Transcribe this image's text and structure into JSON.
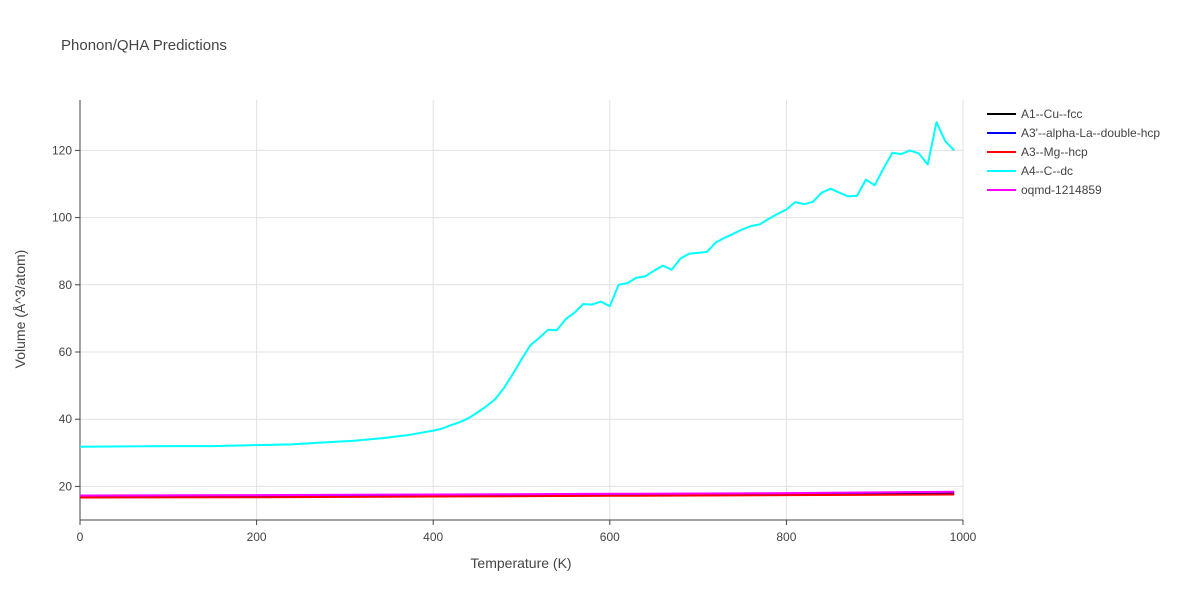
{
  "chart_data": {
    "type": "line",
    "title": "Phonon/QHA Predictions",
    "xlabel": "Temperature (K)",
    "ylabel": "Volume (Å^3/atom)",
    "xlim": [
      0,
      1000
    ],
    "ylim": [
      10,
      135
    ],
    "xticks": [
      0,
      200,
      400,
      600,
      800,
      1000
    ],
    "yticks": [
      20,
      40,
      60,
      80,
      100,
      120
    ],
    "grid": true,
    "legend_position": "top-right",
    "series": [
      {
        "name": "A1--Cu--fcc",
        "color": "#000000",
        "x": [
          0,
          200,
          400,
          600,
          800,
          990
        ],
        "y": [
          16.9,
          17.0,
          17.2,
          17.4,
          17.6,
          17.9
        ]
      },
      {
        "name": "A3'--alpha-La--double-hcp",
        "color": "#0000ff",
        "x": [
          0,
          200,
          400,
          600,
          800,
          990
        ],
        "y": [
          16.8,
          16.9,
          17.1,
          17.3,
          17.5,
          17.7
        ]
      },
      {
        "name": "A3--Mg--hcp",
        "color": "#ff0000",
        "x": [
          0,
          200,
          400,
          600,
          800,
          990
        ],
        "y": [
          16.7,
          16.8,
          17.0,
          17.2,
          17.4,
          17.6
        ]
      },
      {
        "name": "A4--C--dc",
        "color": "#00ffff",
        "x": [
          0,
          50,
          100,
          150,
          200,
          240,
          270,
          310,
          340,
          370,
          400,
          410,
          420,
          430,
          440,
          450,
          460,
          470,
          480,
          490,
          500,
          510,
          520,
          530,
          540,
          550,
          560,
          570,
          580,
          590,
          600,
          610,
          620,
          630,
          640,
          650,
          660,
          670,
          680,
          690,
          700,
          710,
          720,
          730,
          740,
          750,
          760,
          770,
          780,
          790,
          800,
          810,
          820,
          830,
          840,
          850,
          860,
          870,
          880,
          890,
          900,
          910,
          920,
          930,
          940,
          950,
          960,
          970,
          980,
          990
        ],
        "y": [
          31.8,
          31.9,
          32.0,
          32.0,
          32.3,
          32.5,
          33.0,
          33.6,
          34.3,
          35.2,
          36.6,
          37.2,
          38.2,
          39.1,
          40.3,
          42.0,
          43.8,
          45.9,
          49.2,
          53.4,
          57.8,
          62.0,
          64.2,
          66.6,
          66.5,
          69.8,
          71.7,
          74.3,
          74.1,
          75.0,
          73.6,
          80.0,
          80.5,
          82.1,
          82.5,
          84.2,
          85.7,
          84.5,
          87.8,
          89.3,
          89.5,
          89.8,
          92.6,
          94.0,
          95.2,
          96.5,
          97.5,
          98.0,
          99.6,
          101.1,
          102.4,
          104.6,
          104.0,
          104.7,
          107.4,
          108.6,
          107.4,
          106.3,
          106.5,
          111.3,
          109.6,
          114.6,
          119.3,
          118.9,
          120.0,
          119.1,
          115.8,
          128.4,
          122.7,
          120.0
        ]
      },
      {
        "name": "oqmd-1214859",
        "color": "#ff00ff",
        "x": [
          0,
          200,
          400,
          600,
          800,
          990
        ],
        "y": [
          17.3,
          17.4,
          17.6,
          17.8,
          18.0,
          18.4
        ]
      }
    ]
  }
}
